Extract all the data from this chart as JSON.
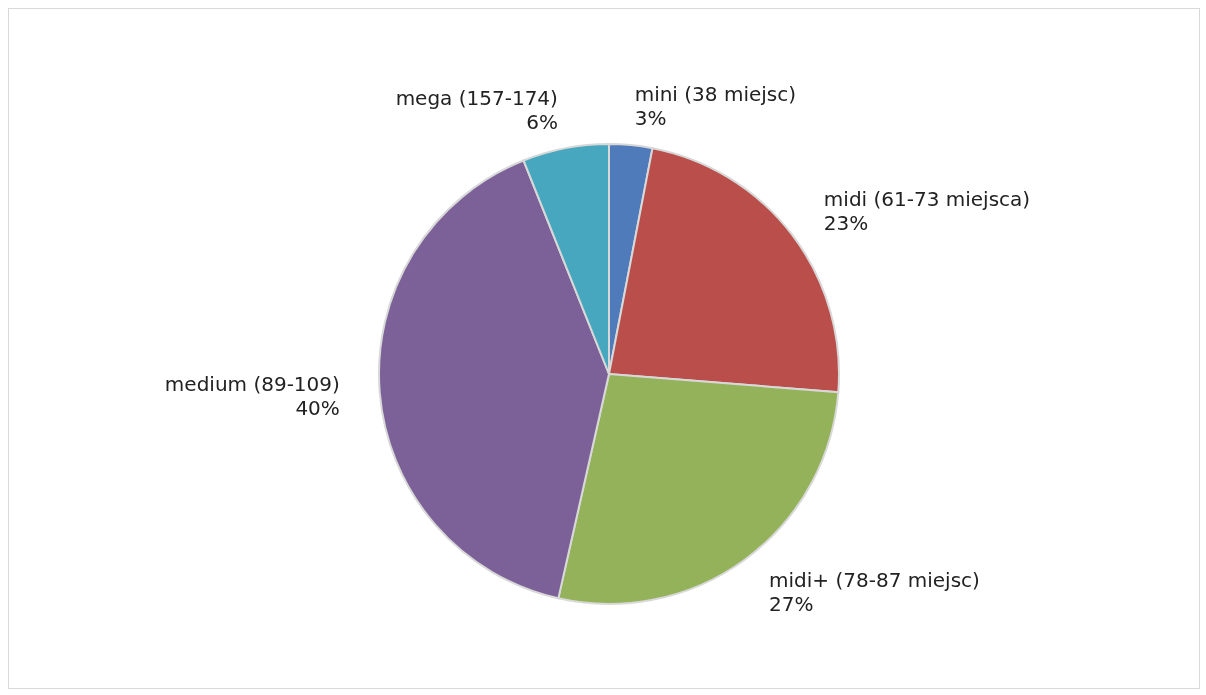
{
  "chart_data": {
    "type": "pie",
    "categories": [
      "mini (38 miejsc)",
      "midi (61-73 miejsca)",
      "midi+ (78-87 miejsc)",
      "medium (89-109)",
      "mega (157-174)"
    ],
    "values": [
      3,
      23,
      27,
      40,
      6
    ],
    "colors": [
      "#4f7bbb",
      "#b94e4a",
      "#93b25a",
      "#7c6198",
      "#46a7be"
    ],
    "value_labels": [
      "3%",
      "23%",
      "27%",
      "40%",
      "6%"
    ],
    "legend": false
  }
}
